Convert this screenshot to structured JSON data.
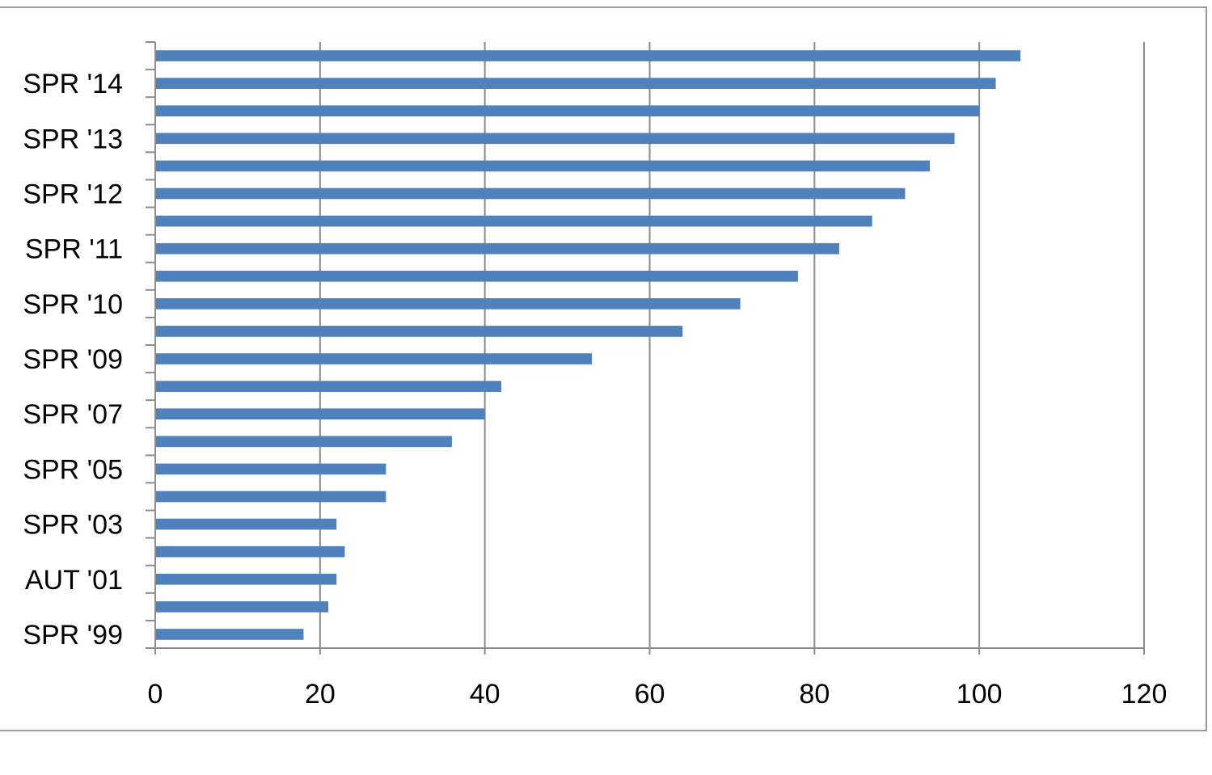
{
  "chart_data": {
    "type": "bar",
    "orientation": "horizontal",
    "title": "",
    "xlabel": "",
    "ylabel": "",
    "xlim": [
      0,
      120
    ],
    "x_ticks": [
      "0",
      "20",
      "40",
      "60",
      "80",
      "100",
      "120"
    ],
    "grid": true,
    "legend": "none",
    "bar_color": "#4f81bd",
    "categories": [
      "SPR '99",
      "",
      "AUT '01",
      "",
      "SPR '03",
      "",
      "SPR '05",
      "",
      "SPR '07",
      "",
      "SPR '09",
      "",
      "SPR '10",
      "",
      "SPR '11",
      "",
      "SPR '12",
      "",
      "SPR '13",
      "",
      "SPR '14",
      ""
    ],
    "values": [
      18,
      21,
      22,
      23,
      22,
      28,
      28,
      36,
      40,
      42,
      53,
      64,
      71,
      78,
      83,
      87,
      91,
      94,
      97,
      100,
      102,
      105
    ]
  }
}
